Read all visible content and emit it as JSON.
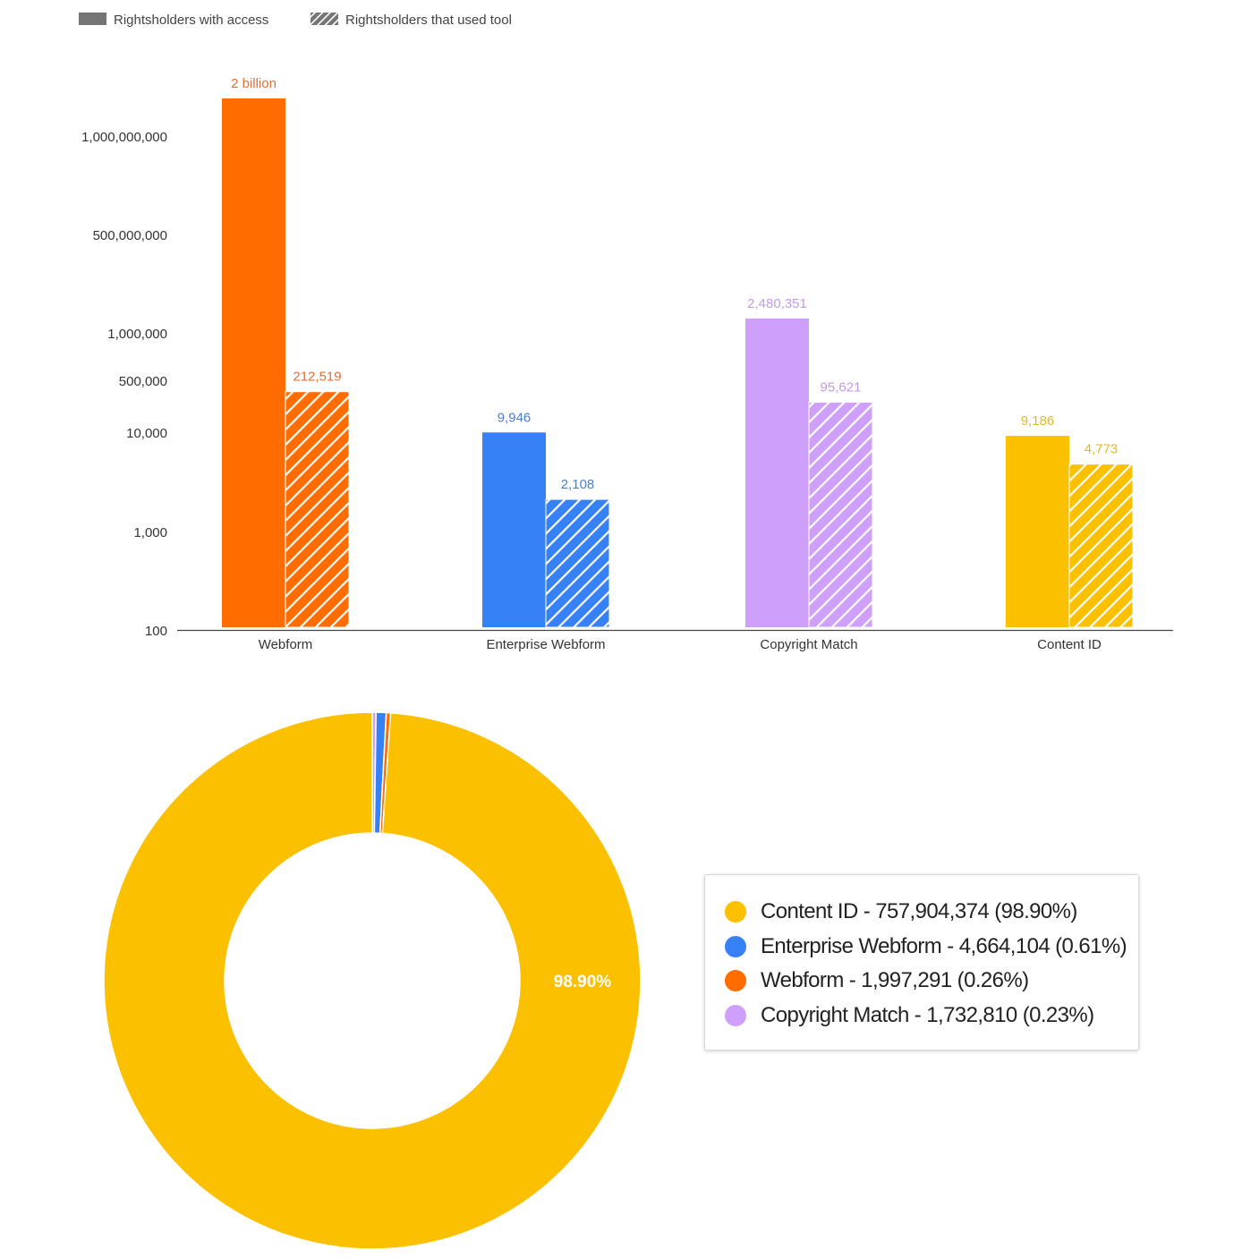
{
  "chart_data": [
    {
      "type": "bar",
      "scale": "log",
      "legend_position": "top-left",
      "series": [
        {
          "name": "Rightsholders with access",
          "pattern": "solid",
          "values": [
            2000000000,
            9946,
            2480351,
            9186
          ],
          "labels": [
            "2 billion",
            "9,946",
            "2,480,351",
            "9,186"
          ]
        },
        {
          "name": "Rightsholders that used tool",
          "pattern": "hatched",
          "values": [
            212519,
            2108,
            95621,
            4773
          ],
          "labels": [
            "212,519",
            "2,108",
            "95,621",
            "4,773"
          ]
        }
      ],
      "categories": [
        "Webform",
        "Enterprise Webform",
        "Copyright Match",
        "Content ID"
      ],
      "category_colors": [
        "#ff6d01",
        "#3781f7",
        "#cfa0fb",
        "#fbc000"
      ],
      "label_colors": [
        "#d8733c",
        "#4a7fd0",
        "#c29ae8",
        "#e2b830"
      ],
      "y_tick_labels": [
        "100",
        "1,000",
        "10,000",
        "500,000",
        "1,000,000",
        "500,000,000",
        "1,000,000,000"
      ],
      "grid": false
    },
    {
      "type": "pie",
      "donut": true,
      "slices": [
        {
          "name": "Content ID",
          "value": 757904374,
          "percent": 98.9,
          "color": "#fbc000",
          "legend": "Content ID - 757,904,374 (98.90%)"
        },
        {
          "name": "Enterprise Webform",
          "value": 4664104,
          "percent": 0.61,
          "color": "#3781f7",
          "legend": "Enterprise Webform - 4,664,104 (0.61%)"
        },
        {
          "name": "Webform",
          "value": 1997291,
          "percent": 0.26,
          "color": "#ff6d01",
          "legend": "Webform - 1,997,291 (0.26%)"
        },
        {
          "name": "Copyright Match",
          "value": 1732810,
          "percent": 0.23,
          "color": "#cfa0fb",
          "legend": "Copyright Match - 1,732,810 (0.23%)"
        }
      ],
      "slice_label": "98.90%",
      "legend_position": "right"
    }
  ]
}
